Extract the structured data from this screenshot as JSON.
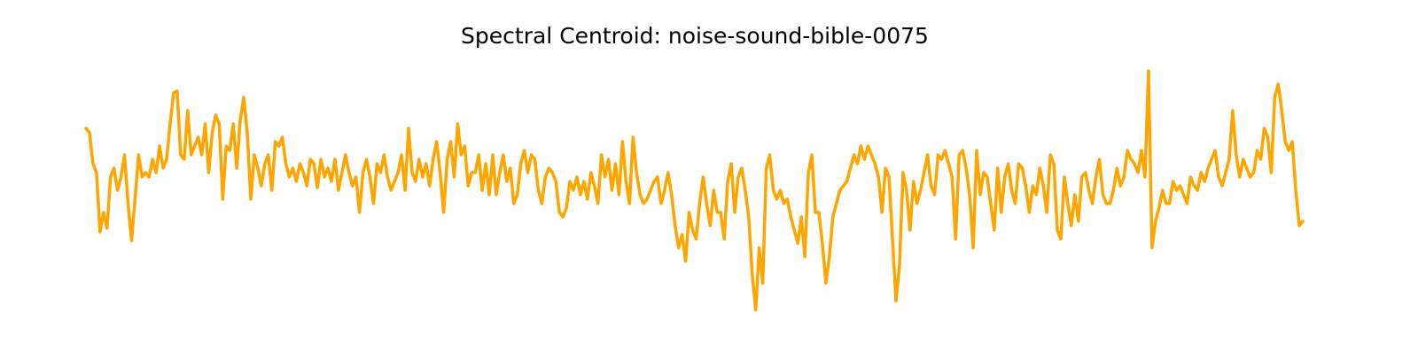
{
  "chart_data": {
    "type": "line",
    "title": "Spectral Centroid: noise-sound-bible-0075",
    "color": "#ffa500",
    "ylim": [
      0,
      280
    ],
    "values": [
      210,
      205,
      170,
      160,
      93,
      115,
      97,
      155,
      165,
      140,
      155,
      180,
      125,
      83,
      130,
      180,
      155,
      160,
      155,
      175,
      160,
      190,
      165,
      175,
      215,
      250,
      252,
      180,
      175,
      230,
      180,
      190,
      200,
      180,
      215,
      160,
      205,
      225,
      215,
      130,
      190,
      185,
      215,
      165,
      220,
      245,
      205,
      130,
      180,
      165,
      145,
      170,
      180,
      140,
      195,
      190,
      200,
      170,
      155,
      165,
      150,
      170,
      160,
      145,
      175,
      170,
      143,
      175,
      155,
      165,
      150,
      175,
      140,
      160,
      180,
      160,
      145,
      155,
      115,
      160,
      175,
      155,
      125,
      170,
      160,
      180,
      155,
      140,
      150,
      160,
      180,
      140,
      210,
      160,
      150,
      175,
      155,
      170,
      145,
      175,
      195,
      160,
      115,
      175,
      195,
      155,
      215,
      180,
      190,
      145,
      160,
      160,
      180,
      140,
      170,
      135,
      180,
      135,
      160,
      180,
      150,
      165,
      125,
      135,
      170,
      185,
      160,
      180,
      175,
      140,
      125,
      155,
      165,
      160,
      150,
      115,
      110,
      120,
      150,
      140,
      155,
      135,
      150,
      130,
      160,
      145,
      125,
      180,
      155,
      175,
      140,
      170,
      135,
      195,
      150,
      125,
      200,
      160,
      135,
      125,
      130,
      140,
      150,
      155,
      125,
      140,
      160,
      135,
      100,
      75,
      90,
      60,
      115,
      95,
      85,
      125,
      155,
      125,
      100,
      140,
      115,
      115,
      85,
      150,
      170,
      115,
      155,
      165,
      140,
      110,
      45,
      5,
      75,
      35,
      165,
      180,
      140,
      130,
      140,
      125,
      130,
      110,
      95,
      80,
      110,
      65,
      160,
      180,
      115,
      115,
      80,
      35,
      65,
      110,
      125,
      140,
      145,
      150,
      165,
      180,
      170,
      190,
      175,
      190,
      180,
      170,
      155,
      115,
      165,
      155,
      85,
      15,
      55,
      160,
      140,
      95,
      150,
      125,
      140,
      160,
      180,
      145,
      135,
      180,
      175,
      185,
      170,
      155,
      85,
      180,
      185,
      165,
      135,
      75,
      185,
      135,
      160,
      155,
      125,
      95,
      165,
      115,
      155,
      170,
      140,
      125,
      170,
      165,
      145,
      115,
      145,
      135,
      165,
      145,
      115,
      180,
      170,
      95,
      85,
      155,
      125,
      100,
      135,
      105,
      155,
      160,
      140,
      125,
      155,
      175,
      135,
      125,
      125,
      140,
      165,
      145,
      155,
      185,
      175,
      170,
      160,
      185,
      155,
      275,
      75,
      105,
      120,
      140,
      125,
      125,
      150,
      140,
      145,
      135,
      125,
      155,
      145,
      140,
      160,
      150,
      165,
      175,
      185,
      155,
      145,
      160,
      175,
      230,
      180,
      155,
      175,
      165,
      155,
      160,
      185,
      175,
      210,
      200,
      160,
      245,
      260,
      230,
      195,
      185,
      195,
      140,
      100,
      105
    ]
  }
}
